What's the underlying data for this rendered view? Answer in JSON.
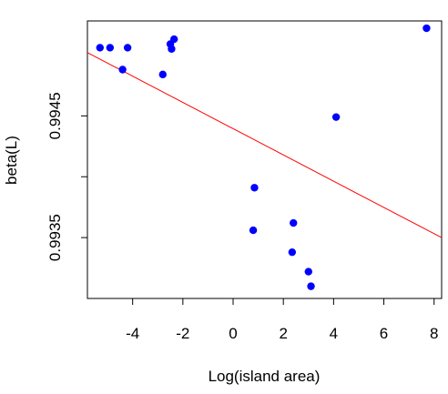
{
  "chart_data": {
    "type": "scatter",
    "title": "",
    "xlabel": "Log(island area)",
    "ylabel": "beta(L)",
    "xlim": [
      -5.8,
      8.3
    ],
    "ylim": [
      0.993,
      0.99528
    ],
    "x_ticks": [
      -4,
      -2,
      0,
      2,
      4,
      6,
      8
    ],
    "x_tick_labels": [
      "-4",
      "-2",
      "0",
      "2",
      "4",
      "6",
      "8"
    ],
    "y_ticks": [
      0.9935,
      0.994,
      0.9945
    ],
    "y_tick_labels": [
      "0.9935",
      "",
      "0.9945"
    ],
    "grid": false,
    "legend": "none",
    "point_color": "#0000ff",
    "line_color": "#ff0000",
    "series": [
      {
        "x": [
          -5.3,
          -4.9,
          -4.2,
          -4.4,
          -2.8,
          -2.5,
          -2.45,
          -2.35,
          7.7,
          4.1,
          0.85,
          0.8,
          2.4,
          2.35,
          3.0,
          3.1
        ],
        "y": [
          0.99506,
          0.99506,
          0.99506,
          0.99488,
          0.99484,
          0.99509,
          0.99505,
          0.99513,
          0.99522,
          0.99449,
          0.99391,
          0.99356,
          0.99362,
          0.99338,
          0.99322,
          0.9931
        ]
      }
    ],
    "fit_line": {
      "x": [
        -5.8,
        8.3
      ],
      "y": [
        0.99502,
        0.9935
      ]
    }
  }
}
